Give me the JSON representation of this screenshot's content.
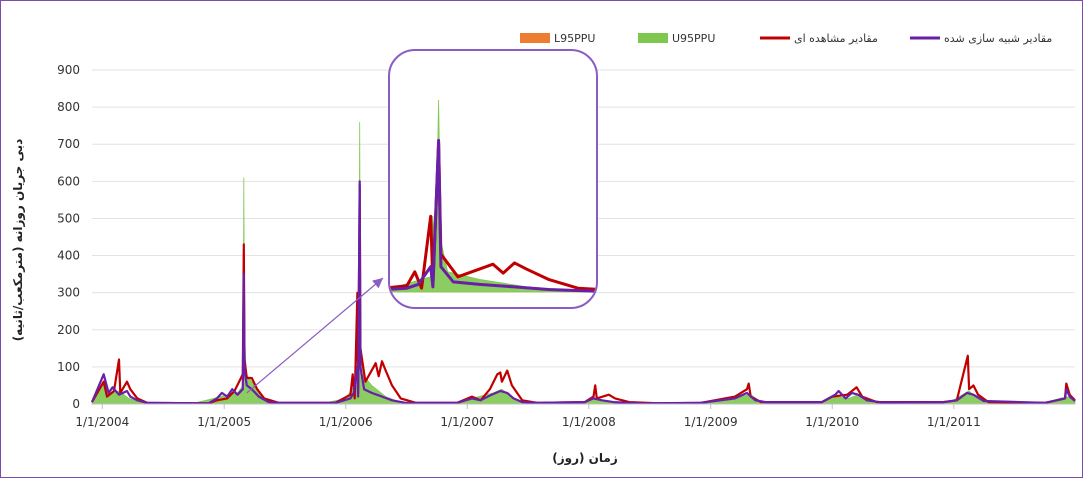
{
  "chart_data": {
    "type": "line",
    "xlabel": "زمان (روز)",
    "ylabel": "دبی جریان روزانه (مترمکعب/ثانیه)",
    "ylim": [
      0,
      900
    ],
    "yticks": [
      0,
      100,
      200,
      300,
      400,
      500,
      600,
      700,
      800,
      900
    ],
    "xlim": [
      "2003-12-01",
      "2011-12-31"
    ],
    "xticks": [
      "1/1/2004",
      "1/1/2005",
      "1/1/2006",
      "1/1/2007",
      "1/1/2008",
      "1/1/2009",
      "1/1/2010",
      "1/1/2011"
    ],
    "grid": true,
    "legend_position": "top",
    "series": [
      {
        "name": "L95PPU",
        "kind": "area",
        "color": "#ed7d31",
        "points": [
          [
            "2003-12-01",
            0
          ],
          [
            "2011-12-31",
            0
          ]
        ]
      },
      {
        "name": "U95PPU",
        "kind": "area",
        "color": "#7ec850",
        "points": [
          [
            "2003-12-01",
            5
          ],
          [
            "2004-01-08",
            60
          ],
          [
            "2004-01-20",
            25
          ],
          [
            "2004-02-20",
            35
          ],
          [
            "2004-03-20",
            15
          ],
          [
            "2004-05-01",
            3
          ],
          [
            "2004-10-01",
            2
          ],
          [
            "2004-12-01",
            15
          ],
          [
            "2005-01-10",
            25
          ],
          [
            "2005-02-10",
            30
          ],
          [
            "2005-02-27",
            50
          ],
          [
            "2005-03-01",
            610
          ],
          [
            "2005-03-03",
            200
          ],
          [
            "2005-03-08",
            80
          ],
          [
            "2005-03-25",
            60
          ],
          [
            "2005-04-25",
            15
          ],
          [
            "2005-06-01",
            3
          ],
          [
            "2005-11-01",
            3
          ],
          [
            "2006-01-01",
            15
          ],
          [
            "2006-02-05",
            60
          ],
          [
            "2006-02-07",
            300
          ],
          [
            "2006-02-09",
            80
          ],
          [
            "2006-02-12",
            760
          ],
          [
            "2006-02-14",
            200
          ],
          [
            "2006-02-20",
            80
          ],
          [
            "2006-03-20",
            50
          ],
          [
            "2006-05-01",
            20
          ],
          [
            "2006-06-15",
            4
          ],
          [
            "2006-12-01",
            3
          ],
          [
            "2007-01-15",
            15
          ],
          [
            "2007-03-20",
            30
          ],
          [
            "2007-04-15",
            40
          ],
          [
            "2007-05-20",
            15
          ],
          [
            "2007-07-01",
            3
          ],
          [
            "2007-12-20",
            5
          ],
          [
            "2008-01-15",
            15
          ],
          [
            "2008-02-10",
            10
          ],
          [
            "2008-03-10",
            5
          ],
          [
            "2008-06-01",
            2
          ],
          [
            "2008-12-01",
            3
          ],
          [
            "2009-03-01",
            15
          ],
          [
            "2009-05-01",
            25
          ],
          [
            "2009-06-01",
            5
          ],
          [
            "2009-12-01",
            5
          ],
          [
            "2010-01-10",
            20
          ],
          [
            "2010-02-20",
            15
          ],
          [
            "2010-03-20",
            25
          ],
          [
            "2010-05-01",
            8
          ],
          [
            "2010-07-01",
            3
          ],
          [
            "2010-12-20",
            5
          ],
          [
            "2011-02-15",
            35
          ],
          [
            "2011-03-15",
            15
          ],
          [
            "2011-05-01",
            5
          ],
          [
            "2011-10-01",
            3
          ],
          [
            "2011-12-05",
            20
          ],
          [
            "2011-12-31",
            10
          ]
        ]
      },
      {
        "name": "مقادیر مشاهده ای",
        "kind": "line",
        "color": "#c00000",
        "points": [
          [
            "2003-12-01",
            5
          ],
          [
            "2004-01-05",
            60
          ],
          [
            "2004-01-15",
            20
          ],
          [
            "2004-02-05",
            35
          ],
          [
            "2004-02-20",
            120
          ],
          [
            "2004-02-24",
            30
          ],
          [
            "2004-03-15",
            60
          ],
          [
            "2004-03-25",
            40
          ],
          [
            "2004-04-15",
            15
          ],
          [
            "2004-05-15",
            3
          ],
          [
            "2004-11-15",
            2
          ],
          [
            "2004-12-10",
            10
          ],
          [
            "2005-01-10",
            15
          ],
          [
            "2005-02-01",
            35
          ],
          [
            "2005-02-26",
            80
          ],
          [
            "2005-03-01",
            430
          ],
          [
            "2005-03-03",
            120
          ],
          [
            "2005-03-10",
            70
          ],
          [
            "2005-03-25",
            70
          ],
          [
            "2005-04-10",
            40
          ],
          [
            "2005-05-01",
            15
          ],
          [
            "2005-06-15",
            3
          ],
          [
            "2005-12-01",
            3
          ],
          [
            "2006-01-15",
            25
          ],
          [
            "2006-01-22",
            80
          ],
          [
            "2006-01-28",
            15
          ],
          [
            "2006-02-05",
            300
          ],
          [
            "2006-02-07",
            30
          ],
          [
            "2006-02-12",
            590
          ],
          [
            "2006-02-14",
            150
          ],
          [
            "2006-03-01",
            60
          ],
          [
            "2006-04-01",
            110
          ],
          [
            "2006-04-10",
            75
          ],
          [
            "2006-04-20",
            115
          ],
          [
            "2006-05-01",
            90
          ],
          [
            "2006-05-20",
            50
          ],
          [
            "2006-06-15",
            15
          ],
          [
            "2006-08-01",
            3
          ],
          [
            "2006-12-01",
            3
          ],
          [
            "2007-01-15",
            20
          ],
          [
            "2007-02-10",
            10
          ],
          [
            "2007-03-10",
            40
          ],
          [
            "2007-04-01",
            80
          ],
          [
            "2007-04-10",
            85
          ],
          [
            "2007-04-15",
            60
          ],
          [
            "2007-05-01",
            90
          ],
          [
            "2007-05-15",
            50
          ],
          [
            "2007-06-15",
            10
          ],
          [
            "2007-08-01",
            3
          ],
          [
            "2007-12-20",
            5
          ],
          [
            "2008-01-15",
            20
          ],
          [
            "2008-01-20",
            50
          ],
          [
            "2008-01-25",
            15
          ],
          [
            "2008-03-01",
            25
          ],
          [
            "2008-03-20",
            15
          ],
          [
            "2008-05-01",
            5
          ],
          [
            "2008-08-01",
            2
          ],
          [
            "2008-12-01",
            3
          ],
          [
            "2009-03-15",
            20
          ],
          [
            "2009-04-20",
            40
          ],
          [
            "2009-04-25",
            55
          ],
          [
            "2009-05-01",
            20
          ],
          [
            "2009-06-01",
            5
          ],
          [
            "2009-12-01",
            5
          ],
          [
            "2010-01-01",
            20
          ],
          [
            "2010-02-15",
            25
          ],
          [
            "2010-03-15",
            45
          ],
          [
            "2010-04-01",
            20
          ],
          [
            "2010-05-15",
            5
          ],
          [
            "2010-12-01",
            5
          ],
          [
            "2011-01-10",
            10
          ],
          [
            "2011-02-12",
            130
          ],
          [
            "2011-02-16",
            40
          ],
          [
            "2011-03-01",
            50
          ],
          [
            "2011-03-15",
            25
          ],
          [
            "2011-04-15",
            5
          ],
          [
            "2011-10-01",
            3
          ],
          [
            "2011-12-01",
            15
          ],
          [
            "2011-12-05",
            55
          ],
          [
            "2011-12-15",
            25
          ],
          [
            "2011-12-31",
            10
          ]
        ]
      },
      {
        "name": "مقادیر شبیه سازی شده",
        "kind": "line",
        "color": "#6a1fa8",
        "points": [
          [
            "2003-12-01",
            5
          ],
          [
            "2004-01-05",
            80
          ],
          [
            "2004-01-20",
            30
          ],
          [
            "2004-02-01",
            45
          ],
          [
            "2004-02-20",
            25
          ],
          [
            "2004-03-15",
            35
          ],
          [
            "2004-03-25",
            20
          ],
          [
            "2004-04-15",
            10
          ],
          [
            "2004-05-15",
            3
          ],
          [
            "2004-11-15",
            2
          ],
          [
            "2004-12-10",
            15
          ],
          [
            "2004-12-25",
            30
          ],
          [
            "2005-01-10",
            20
          ],
          [
            "2005-01-25",
            40
          ],
          [
            "2005-02-10",
            25
          ],
          [
            "2005-02-26",
            40
          ],
          [
            "2005-03-01",
            350
          ],
          [
            "2005-03-03",
            90
          ],
          [
            "2005-03-10",
            50
          ],
          [
            "2005-03-25",
            40
          ],
          [
            "2005-04-15",
            20
          ],
          [
            "2005-05-15",
            5
          ],
          [
            "2005-06-15",
            3
          ],
          [
            "2005-12-01",
            3
          ],
          [
            "2006-01-15",
            15
          ],
          [
            "2006-01-25",
            30
          ],
          [
            "2006-02-05",
            100
          ],
          [
            "2006-02-07",
            20
          ],
          [
            "2006-02-12",
            600
          ],
          [
            "2006-02-14",
            100
          ],
          [
            "2006-02-25",
            40
          ],
          [
            "2006-03-20",
            30
          ],
          [
            "2006-04-20",
            20
          ],
          [
            "2006-05-20",
            10
          ],
          [
            "2006-07-01",
            3
          ],
          [
            "2006-12-01",
            3
          ],
          [
            "2007-01-15",
            15
          ],
          [
            "2007-02-10",
            10
          ],
          [
            "2007-03-15",
            25
          ],
          [
            "2007-04-10",
            35
          ],
          [
            "2007-05-01",
            30
          ],
          [
            "2007-05-20",
            15
          ],
          [
            "2007-06-15",
            5
          ],
          [
            "2007-08-01",
            3
          ],
          [
            "2007-12-20",
            5
          ],
          [
            "2008-01-15",
            15
          ],
          [
            "2008-02-10",
            10
          ],
          [
            "2008-03-15",
            5
          ],
          [
            "2008-06-01",
            2
          ],
          [
            "2008-12-01",
            3
          ],
          [
            "2009-03-15",
            15
          ],
          [
            "2009-04-20",
            30
          ],
          [
            "2009-05-15",
            10
          ],
          [
            "2009-06-15",
            5
          ],
          [
            "2009-12-01",
            5
          ],
          [
            "2010-01-10",
            25
          ],
          [
            "2010-01-20",
            35
          ],
          [
            "2010-02-10",
            15
          ],
          [
            "2010-03-01",
            30
          ],
          [
            "2010-03-20",
            25
          ],
          [
            "2010-04-15",
            10
          ],
          [
            "2010-06-01",
            4
          ],
          [
            "2010-12-01",
            5
          ],
          [
            "2011-01-10",
            10
          ],
          [
            "2011-02-10",
            30
          ],
          [
            "2011-03-01",
            25
          ],
          [
            "2011-04-01",
            8
          ],
          [
            "2011-10-01",
            3
          ],
          [
            "2011-12-01",
            15
          ],
          [
            "2011-12-05",
            40
          ],
          [
            "2011-12-15",
            20
          ],
          [
            "2011-12-31",
            8
          ]
        ]
      }
    ],
    "inset": {
      "xlim": [
        "2006-01-01",
        "2006-06-30"
      ],
      "ylim": [
        0,
        950
      ]
    }
  }
}
